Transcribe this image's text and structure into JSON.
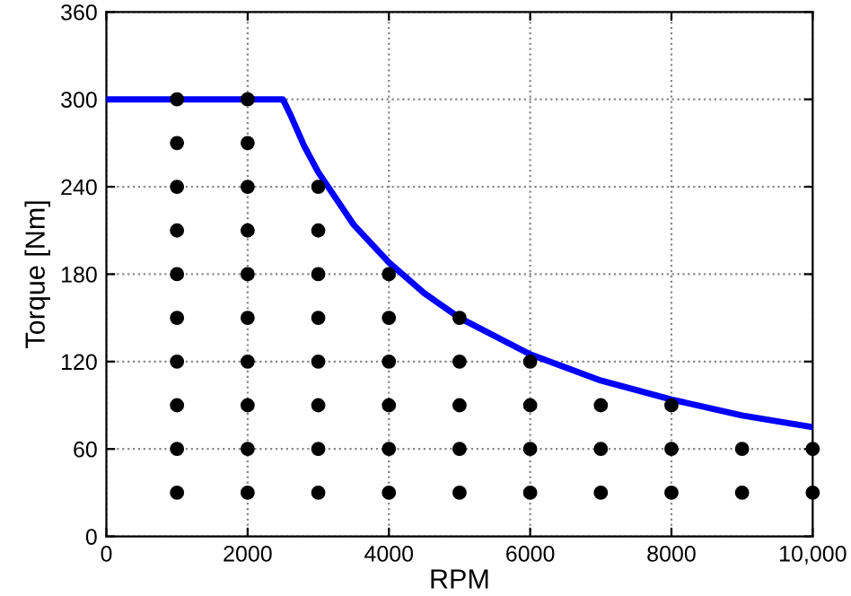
{
  "chart_data": {
    "type": "line",
    "xlabel": "RPM",
    "ylabel": "Torque [Nm]",
    "xlim": [
      0,
      10000
    ],
    "xticks": [
      0,
      2000,
      4000,
      6000,
      8000,
      {
        "value": 10000,
        "label": "10,000"
      }
    ],
    "ylim": [
      0,
      360
    ],
    "yticks": [
      0,
      60,
      120,
      180,
      240,
      300,
      360
    ],
    "grid": true,
    "legend": false,
    "series": [
      {
        "color": "#0000ff",
        "marker": "none",
        "line_style": "solid",
        "x": [
          0,
          2500,
          2600,
          2800,
          3000,
          3500,
          4000,
          4500,
          5000,
          6000,
          7000,
          8000,
          9000,
          10000
        ],
        "values": [
          300,
          300,
          290,
          268,
          250,
          214,
          188,
          167,
          150,
          125,
          107,
          94,
          83,
          75
        ]
      },
      {
        "type": "scatter",
        "color": "#000000",
        "marker": "circle",
        "x": [
          1000,
          1000,
          1000,
          1000,
          1000,
          1000,
          1000,
          1000,
          1000,
          1000,
          2000,
          2000,
          2000,
          2000,
          2000,
          2000,
          2000,
          2000,
          2000,
          2000,
          3000,
          3000,
          3000,
          3000,
          3000,
          3000,
          3000,
          3000,
          4000,
          4000,
          4000,
          4000,
          4000,
          4000,
          5000,
          5000,
          5000,
          5000,
          5000,
          6000,
          6000,
          6000,
          6000,
          7000,
          7000,
          7000,
          8000,
          8000,
          8000,
          9000,
          9000,
          10000,
          10000
        ],
        "values": [
          30,
          60,
          90,
          120,
          150,
          180,
          210,
          240,
          270,
          300,
          30,
          60,
          90,
          120,
          150,
          180,
          210,
          240,
          270,
          300,
          30,
          60,
          90,
          120,
          150,
          180,
          210,
          240,
          30,
          60,
          90,
          120,
          150,
          180,
          30,
          60,
          90,
          120,
          150,
          30,
          60,
          90,
          120,
          30,
          60,
          90,
          30,
          60,
          90,
          30,
          60,
          30,
          60
        ]
      }
    ]
  }
}
